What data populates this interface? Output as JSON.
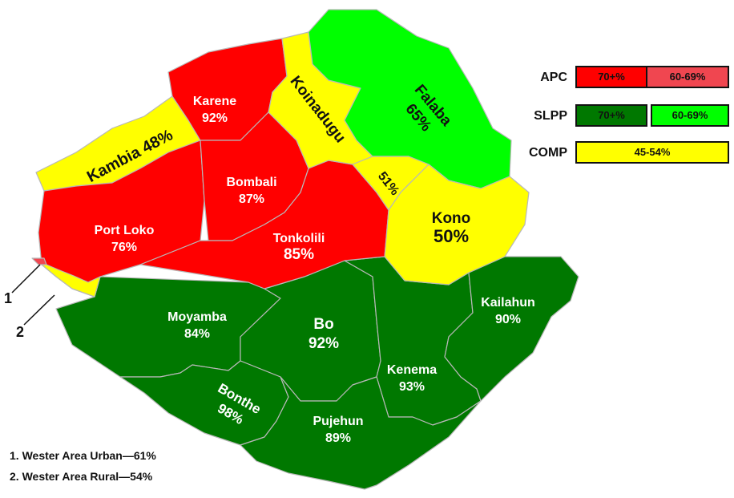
{
  "map": {
    "regions": [
      {
        "name": "Kambia",
        "pct": "48%",
        "party": "COMP",
        "color": "#ffff00"
      },
      {
        "name": "Karene",
        "pct": "92%",
        "party": "APC",
        "color": "#ff0000"
      },
      {
        "name": "Koinadugu",
        "pct": "",
        "party": "COMP",
        "color": "#ffff00"
      },
      {
        "name": "Falaba",
        "pct": "65%",
        "party": "SLPP",
        "color": "#00ff00"
      },
      {
        "name": "Bombali",
        "pct": "87%",
        "party": "APC",
        "color": "#ff0000"
      },
      {
        "name": "Port Loko",
        "pct": "76%",
        "party": "APC",
        "color": "#ff0000"
      },
      {
        "name": "Tonkolili",
        "pct": "85%",
        "party": "APC",
        "color": "#ff0000"
      },
      {
        "name": "",
        "pct": "51%",
        "party": "COMP",
        "color": "#ffff00"
      },
      {
        "name": "Kono",
        "pct": "50%",
        "party": "COMP",
        "color": "#ffff00"
      },
      {
        "name": "Moyamba",
        "pct": "84%",
        "party": "SLPP",
        "color": "#007800"
      },
      {
        "name": "Bo",
        "pct": "92%",
        "party": "SLPP",
        "color": "#007800"
      },
      {
        "name": "Kailahun",
        "pct": "90%",
        "party": "SLPP",
        "color": "#007800"
      },
      {
        "name": "Kenema",
        "pct": "93%",
        "party": "SLPP",
        "color": "#007800"
      },
      {
        "name": "Bonthe",
        "pct": "98%",
        "party": "SLPP",
        "color": "#007800"
      },
      {
        "name": "Pujehun",
        "pct": "89%",
        "party": "SLPP",
        "color": "#007800"
      }
    ],
    "callouts": [
      "1",
      "2"
    ]
  },
  "legend": {
    "apc": {
      "label": "APC",
      "high": "70+%",
      "mid": "60-69%",
      "high_color": "#ff0000",
      "mid_color": "#f04650"
    },
    "slpp": {
      "label": "SLPP",
      "high": "70+%",
      "mid": "60-69%",
      "high_color": "#007800",
      "mid_color": "#00ff00"
    },
    "comp": {
      "label": "COMP",
      "range": "45-54%",
      "color": "#ffff00"
    }
  },
  "notes": [
    "1. Wester Area Urban—61%",
    "2. Wester Area Rural—54%"
  ]
}
